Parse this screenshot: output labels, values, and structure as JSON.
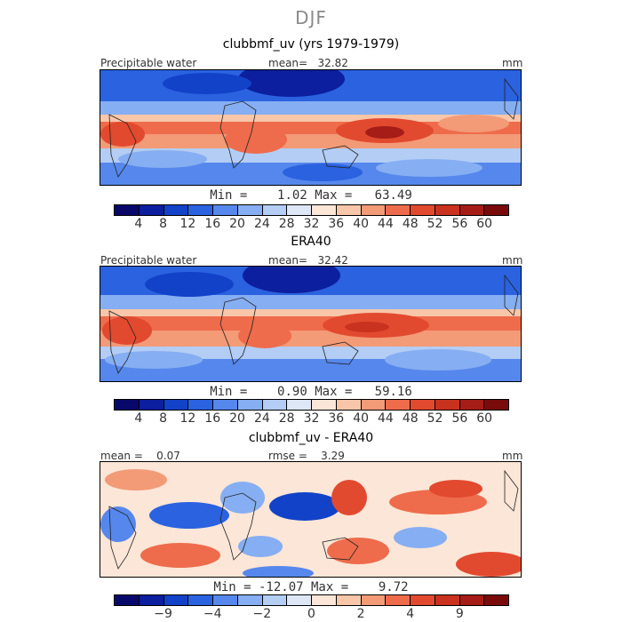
{
  "season": "DJF",
  "panels": [
    {
      "title": "clubbmf_uv (yrs 1979-1979)",
      "left_label": "Precipitable water",
      "mid_label": "mean=   32.82",
      "right_label": "mm",
      "min_max": "Min =    1.02 Max =   63.49"
    },
    {
      "title": "ERA40",
      "left_label": "Precipitable water",
      "mid_label": "mean=   32.42",
      "right_label": "mm",
      "min_max": "Min =    0.90 Max =   59.16"
    },
    {
      "title": "clubbmf_uv - ERA40",
      "left_label": "mean =    0.07",
      "mid_label": "rmse =    3.29",
      "right_label": "mm",
      "min_max": "Min = -12.07 Max =    9.72"
    }
  ],
  "colorbar_abs": {
    "colors": [
      "#08086b",
      "#0c1f9e",
      "#1242c8",
      "#2a62e0",
      "#5687ec",
      "#86aef2",
      "#b3cdf5",
      "#dde7f6",
      "#fbe6d7",
      "#f8c6a9",
      "#f39a77",
      "#ee6c4c",
      "#e24a2f",
      "#c9321f",
      "#a51d16",
      "#7a0b0b"
    ],
    "ticks": [
      "4",
      "8",
      "12",
      "16",
      "20",
      "24",
      "28",
      "32",
      "36",
      "40",
      "44",
      "48",
      "52",
      "56",
      "60"
    ]
  },
  "colorbar_diff": {
    "colors": [
      "#08086b",
      "#0c1f9e",
      "#1242c8",
      "#2a62e0",
      "#5687ec",
      "#86aef2",
      "#b3cdf5",
      "#dde7f6",
      "#fbe6d7",
      "#f8c6a9",
      "#f39a77",
      "#ee6c4c",
      "#e24a2f",
      "#c9321f",
      "#a51d16",
      "#7a0b0b"
    ],
    "ticks": [
      "−9",
      "−4",
      "−2",
      "0",
      "2",
      "4",
      "9"
    ]
  }
}
